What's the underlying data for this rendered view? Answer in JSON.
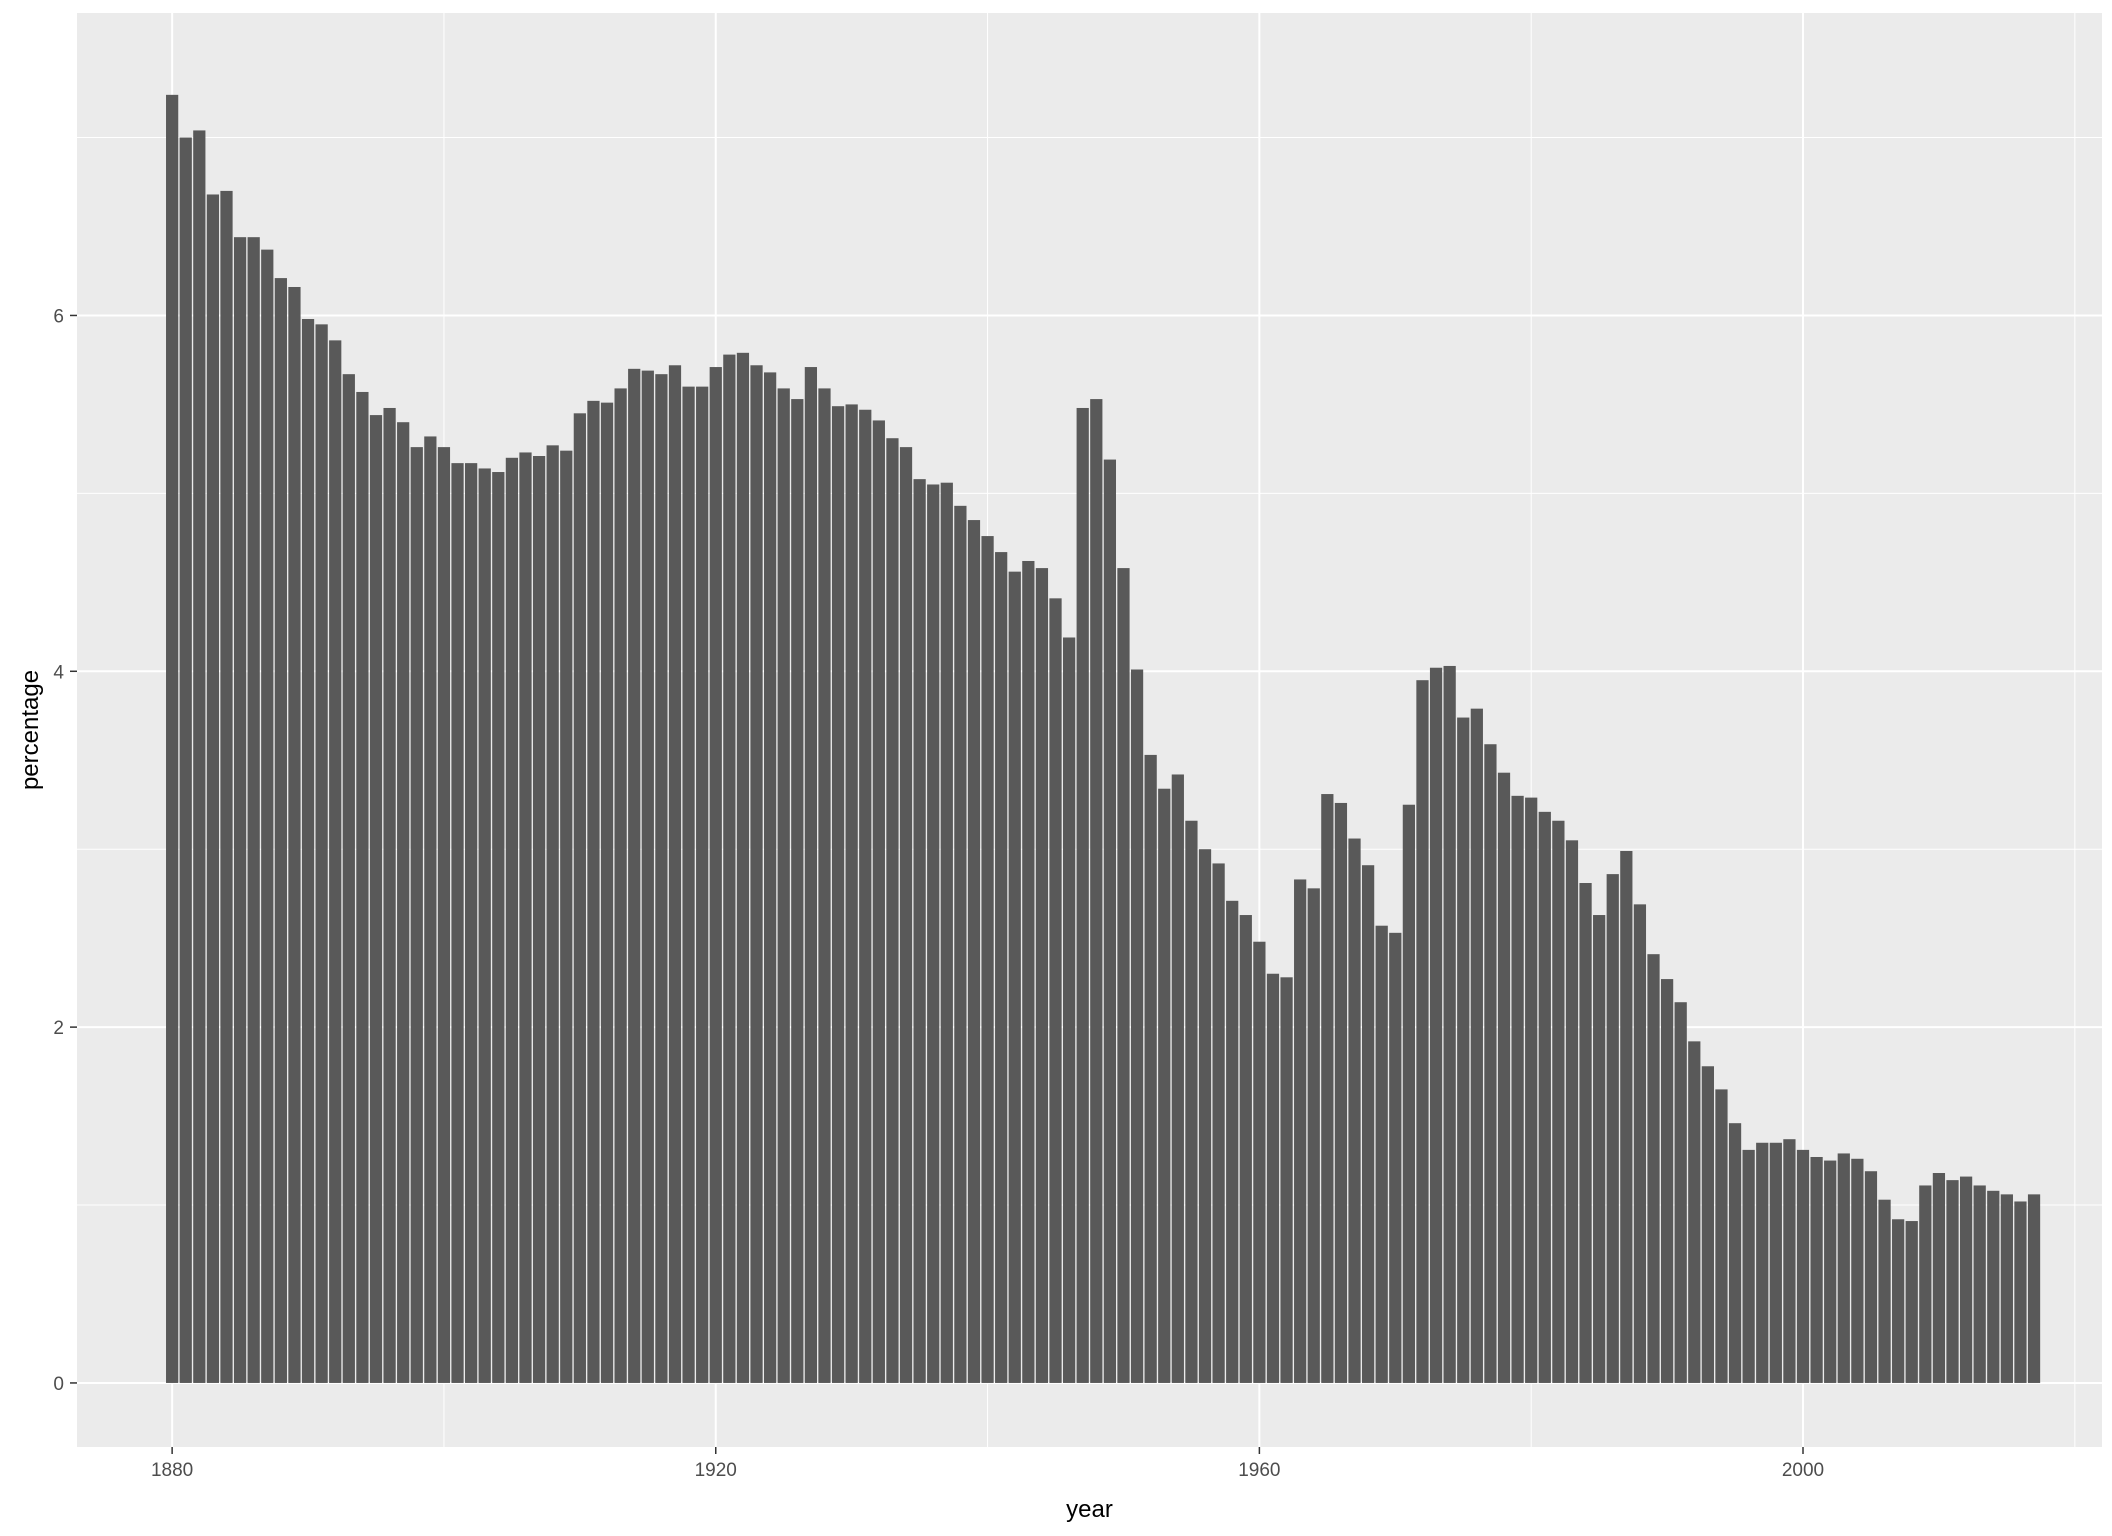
{
  "chart_data": {
    "type": "bar",
    "title": "",
    "xlabel": "year",
    "ylabel": "percentage",
    "xlim": [
      1873,
      2022
    ],
    "ylim": [
      -0.36,
      7.7
    ],
    "x_breaks": [
      1880,
      1920,
      1960,
      2000
    ],
    "x_minor_breaks": [
      1900,
      1940,
      1980,
      2020
    ],
    "y_breaks": [
      0,
      2,
      4,
      6
    ],
    "y_minor_breaks": [
      1,
      3,
      5,
      7
    ],
    "grid": true,
    "legend": "none",
    "colors": {
      "bar": "#595959",
      "panel": "#ebebeb",
      "grid": "#ffffff",
      "tick": "#333333"
    },
    "x": [
      1880,
      1881,
      1882,
      1883,
      1884,
      1885,
      1886,
      1887,
      1888,
      1889,
      1890,
      1891,
      1892,
      1893,
      1894,
      1895,
      1896,
      1897,
      1898,
      1899,
      1900,
      1901,
      1902,
      1903,
      1904,
      1905,
      1906,
      1907,
      1908,
      1909,
      1910,
      1911,
      1912,
      1913,
      1914,
      1915,
      1916,
      1917,
      1918,
      1919,
      1920,
      1921,
      1922,
      1923,
      1924,
      1925,
      1926,
      1927,
      1928,
      1929,
      1930,
      1931,
      1932,
      1933,
      1934,
      1935,
      1936,
      1937,
      1938,
      1939,
      1940,
      1941,
      1942,
      1943,
      1944,
      1945,
      1946,
      1947,
      1948,
      1949,
      1950,
      1951,
      1952,
      1953,
      1954,
      1955,
      1956,
      1957,
      1958,
      1959,
      1960,
      1961,
      1962,
      1963,
      1964,
      1965,
      1966,
      1967,
      1968,
      1969,
      1970,
      1971,
      1972,
      1973,
      1974,
      1975,
      1976,
      1977,
      1978,
      1979,
      1980,
      1981,
      1982,
      1983,
      1984,
      1985,
      1986,
      1987,
      1988,
      1989,
      1990,
      1991,
      1992,
      1993,
      1994,
      1995,
      1996,
      1997,
      1998,
      1999,
      2000,
      2001,
      2002,
      2003,
      2004,
      2005,
      2006,
      2007,
      2008,
      2009,
      2010,
      2011,
      2012,
      2013,
      2014,
      2015,
      2016,
      2017
    ],
    "values": [
      7.24,
      7.0,
      7.04,
      6.68,
      6.7,
      6.44,
      6.44,
      6.37,
      6.21,
      6.16,
      5.98,
      5.95,
      5.86,
      5.67,
      5.57,
      5.44,
      5.48,
      5.4,
      5.26,
      5.32,
      5.26,
      5.17,
      5.17,
      5.14,
      5.12,
      5.2,
      5.23,
      5.21,
      5.27,
      5.24,
      5.45,
      5.52,
      5.51,
      5.59,
      5.7,
      5.69,
      5.67,
      5.72,
      5.6,
      5.6,
      5.71,
      5.78,
      5.79,
      5.72,
      5.68,
      5.59,
      5.53,
      5.71,
      5.59,
      5.49,
      5.5,
      5.47,
      5.41,
      5.31,
      5.26,
      5.08,
      5.05,
      5.06,
      4.93,
      4.85,
      4.76,
      4.67,
      4.56,
      4.62,
      4.58,
      4.41,
      4.19,
      5.48,
      5.53,
      5.19,
      4.58,
      4.01,
      3.53,
      3.34,
      3.42,
      3.16,
      3.0,
      2.92,
      2.71,
      2.63,
      2.48,
      2.3,
      2.28,
      2.83,
      2.78,
      3.31,
      3.26,
      3.06,
      2.91,
      2.57,
      2.53,
      3.25,
      3.95,
      4.02,
      4.03,
      3.74,
      3.79,
      3.59,
      3.43,
      3.3,
      3.29,
      3.21,
      3.16,
      3.05,
      2.81,
      2.63,
      2.86,
      2.99,
      2.69,
      2.41,
      2.27,
      2.14,
      1.92,
      1.78,
      1.65,
      1.46,
      1.31,
      1.35,
      1.35,
      1.37,
      1.31,
      1.27,
      1.25,
      1.29,
      1.26,
      1.19,
      1.03,
      0.92,
      0.91,
      1.11,
      1.18,
      1.14,
      1.16,
      1.11,
      1.08,
      1.06,
      1.02,
      1.06
    ]
  }
}
